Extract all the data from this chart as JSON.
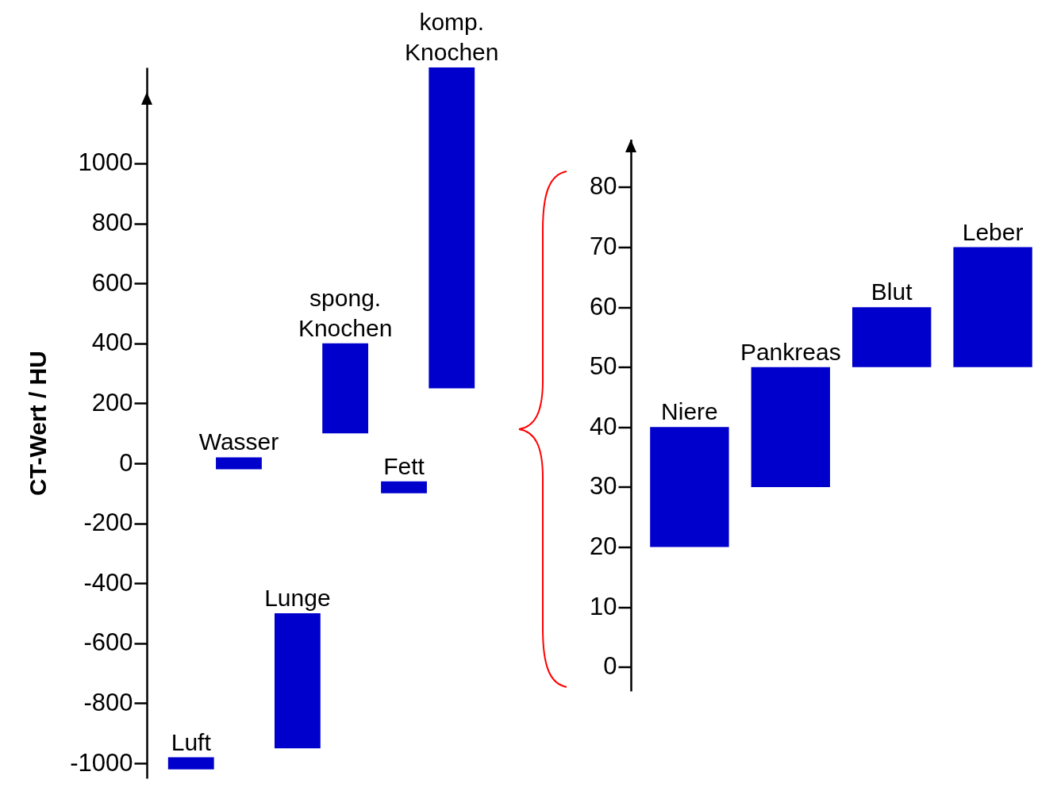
{
  "chart_data": [
    {
      "type": "bar",
      "ylabel": "CT-Wert / HU",
      "categories": [
        null,
        null,
        null
      ],
      "ylim": [
        -1050,
        1320
      ],
      "yticks": [
        -1000,
        -800,
        -600,
        -400,
        -200,
        0,
        200,
        400,
        600,
        800,
        1000
      ],
      "grid": false,
      "series": [
        {
          "color": "#0000cc",
          "base": [
            -1020,
            -950,
            -100
          ],
          "values": [
            40,
            450,
            40
          ],
          "value_labels": [
            "Luft",
            "Lunge",
            "Fett"
          ]
        },
        {
          "color": "#0000cc",
          "base": [
            -20,
            100,
            250
          ],
          "values": [
            40,
            300,
            1070
          ],
          "value_labels": [
            "Wasser",
            "spong. Knochen",
            "komp. Knochen"
          ]
        }
      ]
    },
    {
      "type": "bar",
      "categories": [
        null,
        null,
        null,
        null
      ],
      "ylim": [
        -4,
        88
      ],
      "yticks": [
        0,
        10,
        20,
        30,
        40,
        50,
        60,
        70,
        80
      ],
      "grid": false,
      "series": [
        {
          "color": "#0000cc",
          "base": [
            20,
            30,
            50,
            50
          ],
          "values": [
            20,
            20,
            10,
            20
          ],
          "value_labels": [
            "Niere",
            "Pankreas",
            "Blut",
            "Leber"
          ]
        }
      ]
    }
  ]
}
